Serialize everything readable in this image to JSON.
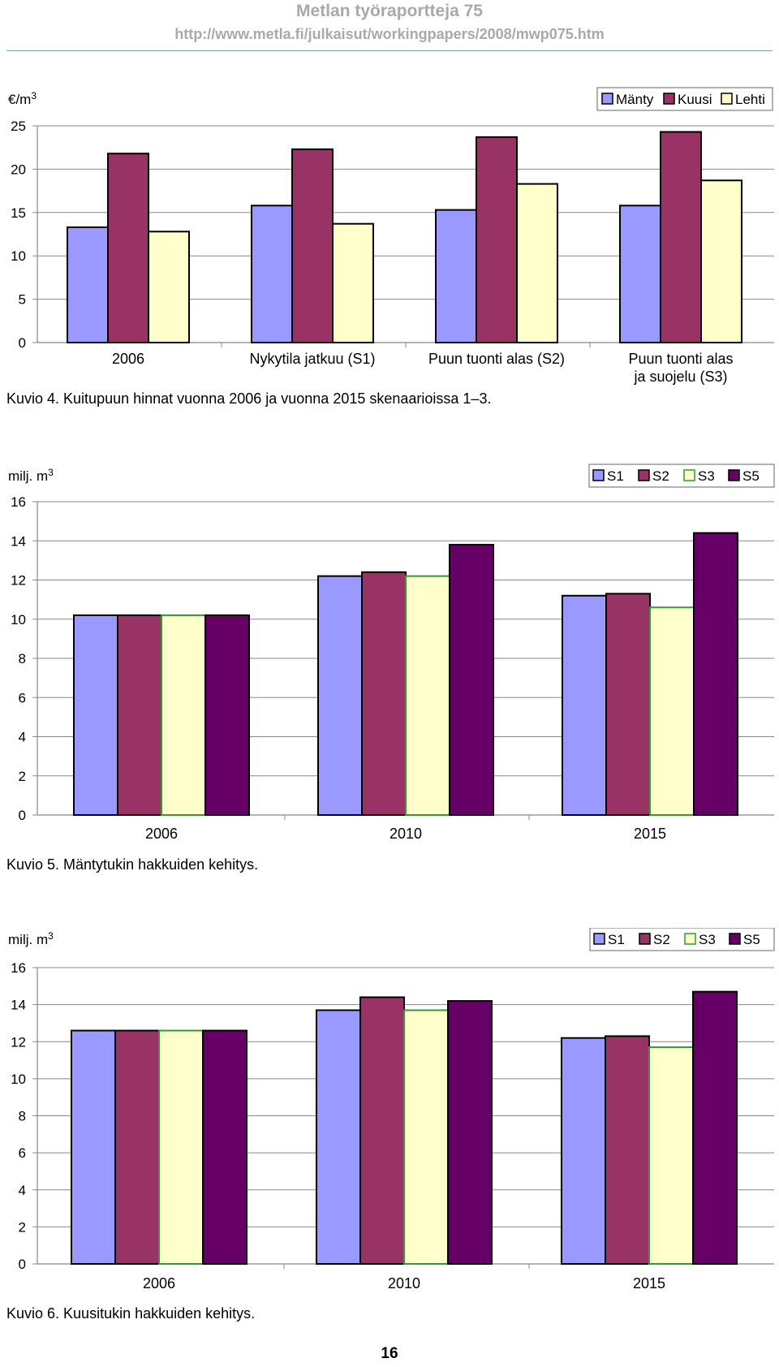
{
  "header": {
    "title": "Metlan työraportteja 75",
    "url": "http://www.metla.fi/julkaisut/workingpapers/2008/mwp075.htm"
  },
  "page_number": "16",
  "colors": {
    "s1": "#9999ff",
    "s2": "#993366",
    "s3": "#ffffcc",
    "s3_border": "#339933",
    "s5": "#660066"
  },
  "chart_data": [
    {
      "type": "bar",
      "unit": "€/m³",
      "categories": [
        "2006",
        "Nykytila jatkuu (S1)",
        "Puun tuonti alas  (S2)",
        "Puun tuonti alas\nja suojelu (S3)"
      ],
      "series": [
        {
          "name": "Mänty",
          "values": [
            13.3,
            15.8,
            15.3,
            15.8
          ]
        },
        {
          "name": "Kuusi",
          "values": [
            21.8,
            22.3,
            23.7,
            24.3
          ]
        },
        {
          "name": "Lehti",
          "values": [
            12.8,
            13.7,
            18.3,
            18.7
          ]
        }
      ],
      "ylim": [
        0,
        25
      ],
      "yticks": [
        0,
        5,
        10,
        15,
        20,
        25
      ],
      "legend": "top-right",
      "caption": "Kuvio 4. Kuitupuun hinnat vuonna 2006 ja vuonna 2015 skenaarioissa 1–3."
    },
    {
      "type": "bar",
      "unit": "milj. m³",
      "categories": [
        "2006",
        "2010",
        "2015"
      ],
      "series": [
        {
          "name": "S1",
          "values": [
            10.2,
            12.2,
            11.2
          ]
        },
        {
          "name": "S2",
          "values": [
            10.2,
            12.4,
            11.3
          ]
        },
        {
          "name": "S3",
          "values": [
            10.2,
            12.2,
            10.6
          ]
        },
        {
          "name": "S5",
          "values": [
            10.2,
            13.8,
            14.4
          ]
        }
      ],
      "ylim": [
        0,
        16
      ],
      "yticks": [
        0,
        2,
        4,
        6,
        8,
        10,
        12,
        14,
        16
      ],
      "legend": "top-right",
      "caption": "Kuvio 5. Mäntytukin hakkuiden kehitys."
    },
    {
      "type": "bar",
      "unit": "milj. m³",
      "categories": [
        "2006",
        "2010",
        "2015"
      ],
      "series": [
        {
          "name": "S1",
          "values": [
            12.6,
            13.7,
            12.2
          ]
        },
        {
          "name": "S2",
          "values": [
            12.6,
            14.4,
            12.3
          ]
        },
        {
          "name": "S3",
          "values": [
            12.6,
            13.7,
            11.7
          ]
        },
        {
          "name": "S5",
          "values": [
            12.6,
            14.2,
            14.7
          ]
        }
      ],
      "ylim": [
        0,
        16
      ],
      "yticks": [
        0,
        2,
        4,
        6,
        8,
        10,
        12,
        14,
        16
      ],
      "legend": "top-right",
      "caption": "Kuvio 6. Kuusitukin hakkuiden kehitys."
    }
  ]
}
